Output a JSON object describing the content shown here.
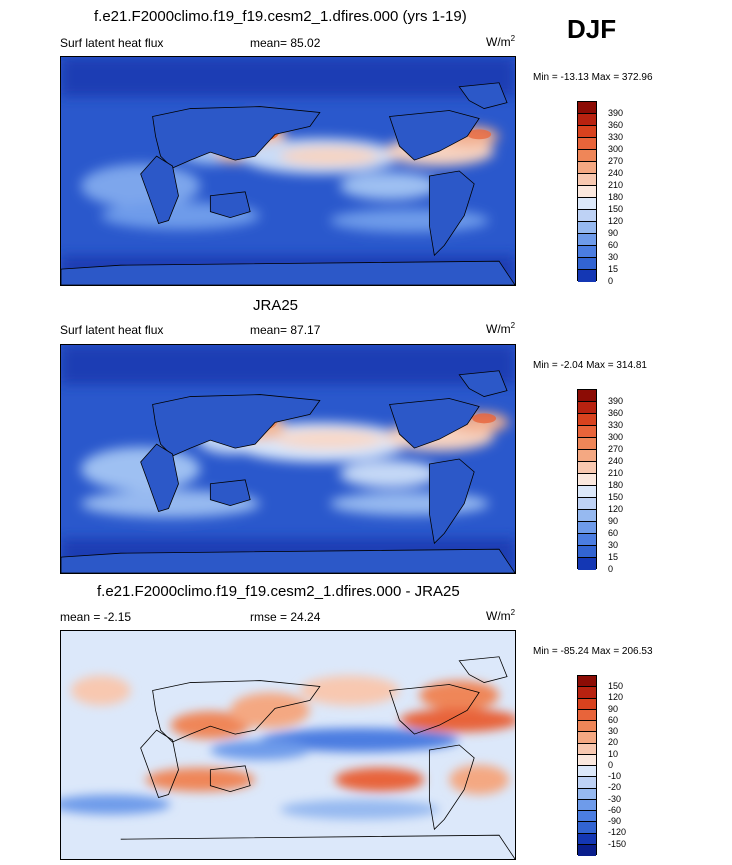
{
  "season": "DJF",
  "units_label": "W/m",
  "units_sup": "2",
  "colors": {
    "scale_sequential": [
      "#0a1e8c",
      "#1437b4",
      "#1e50c8",
      "#3264d2",
      "#4b7de1",
      "#6e9bea",
      "#96b9f0",
      "#bed2f5",
      "#dce8fa",
      "#fbe8de",
      "#f8c8b0",
      "#f4a882",
      "#ef8658",
      "#e8643a",
      "#d8421e",
      "#b82210",
      "#8c0c05"
    ],
    "scale_diff": [
      "#0a1e8c",
      "#1437b4",
      "#1e50c8",
      "#3264d2",
      "#4b7de1",
      "#6e9bea",
      "#96b9f0",
      "#bed2f5",
      "#dce8fa",
      "#fbe8de",
      "#f8c8b0",
      "#f4a882",
      "#ef8658",
      "#e8643a",
      "#d8421e",
      "#b82210",
      "#8c0c05"
    ]
  },
  "panels": [
    {
      "title": "f.e21.F2000climo.f19_f19.cesm2_1.dfires.000 (yrs 1-19)",
      "left_label": "Surf latent heat flux",
      "center_label": "mean=  85.02",
      "minmax": "Min = -13.13 Max = 372.96",
      "levels": [
        "390",
        "360",
        "330",
        "300",
        "270",
        "240",
        "210",
        "180",
        "150",
        "120",
        "90",
        "60",
        "30",
        "15",
        "0"
      ]
    },
    {
      "title": "JRA25",
      "left_label": "Surf latent heat flux",
      "center_label": "mean=  87.17",
      "minmax": "Min =  -2.04 Max = 314.81",
      "levels": [
        "390",
        "360",
        "330",
        "300",
        "270",
        "240",
        "210",
        "180",
        "150",
        "120",
        "90",
        "60",
        "30",
        "15",
        "0"
      ]
    },
    {
      "title": "f.e21.F2000climo.f19_f19.cesm2_1.dfires.000 - JRA25",
      "left_label": "mean =  -2.15",
      "center_label": "rmse =  24.24",
      "minmax": "Min = -85.24 Max = 206.53",
      "levels": [
        "150",
        "120",
        "90",
        "60",
        "30",
        "20",
        "10",
        "0",
        "-10",
        "-20",
        "-30",
        "-60",
        "-90",
        "-120",
        "-150"
      ]
    }
  ]
}
